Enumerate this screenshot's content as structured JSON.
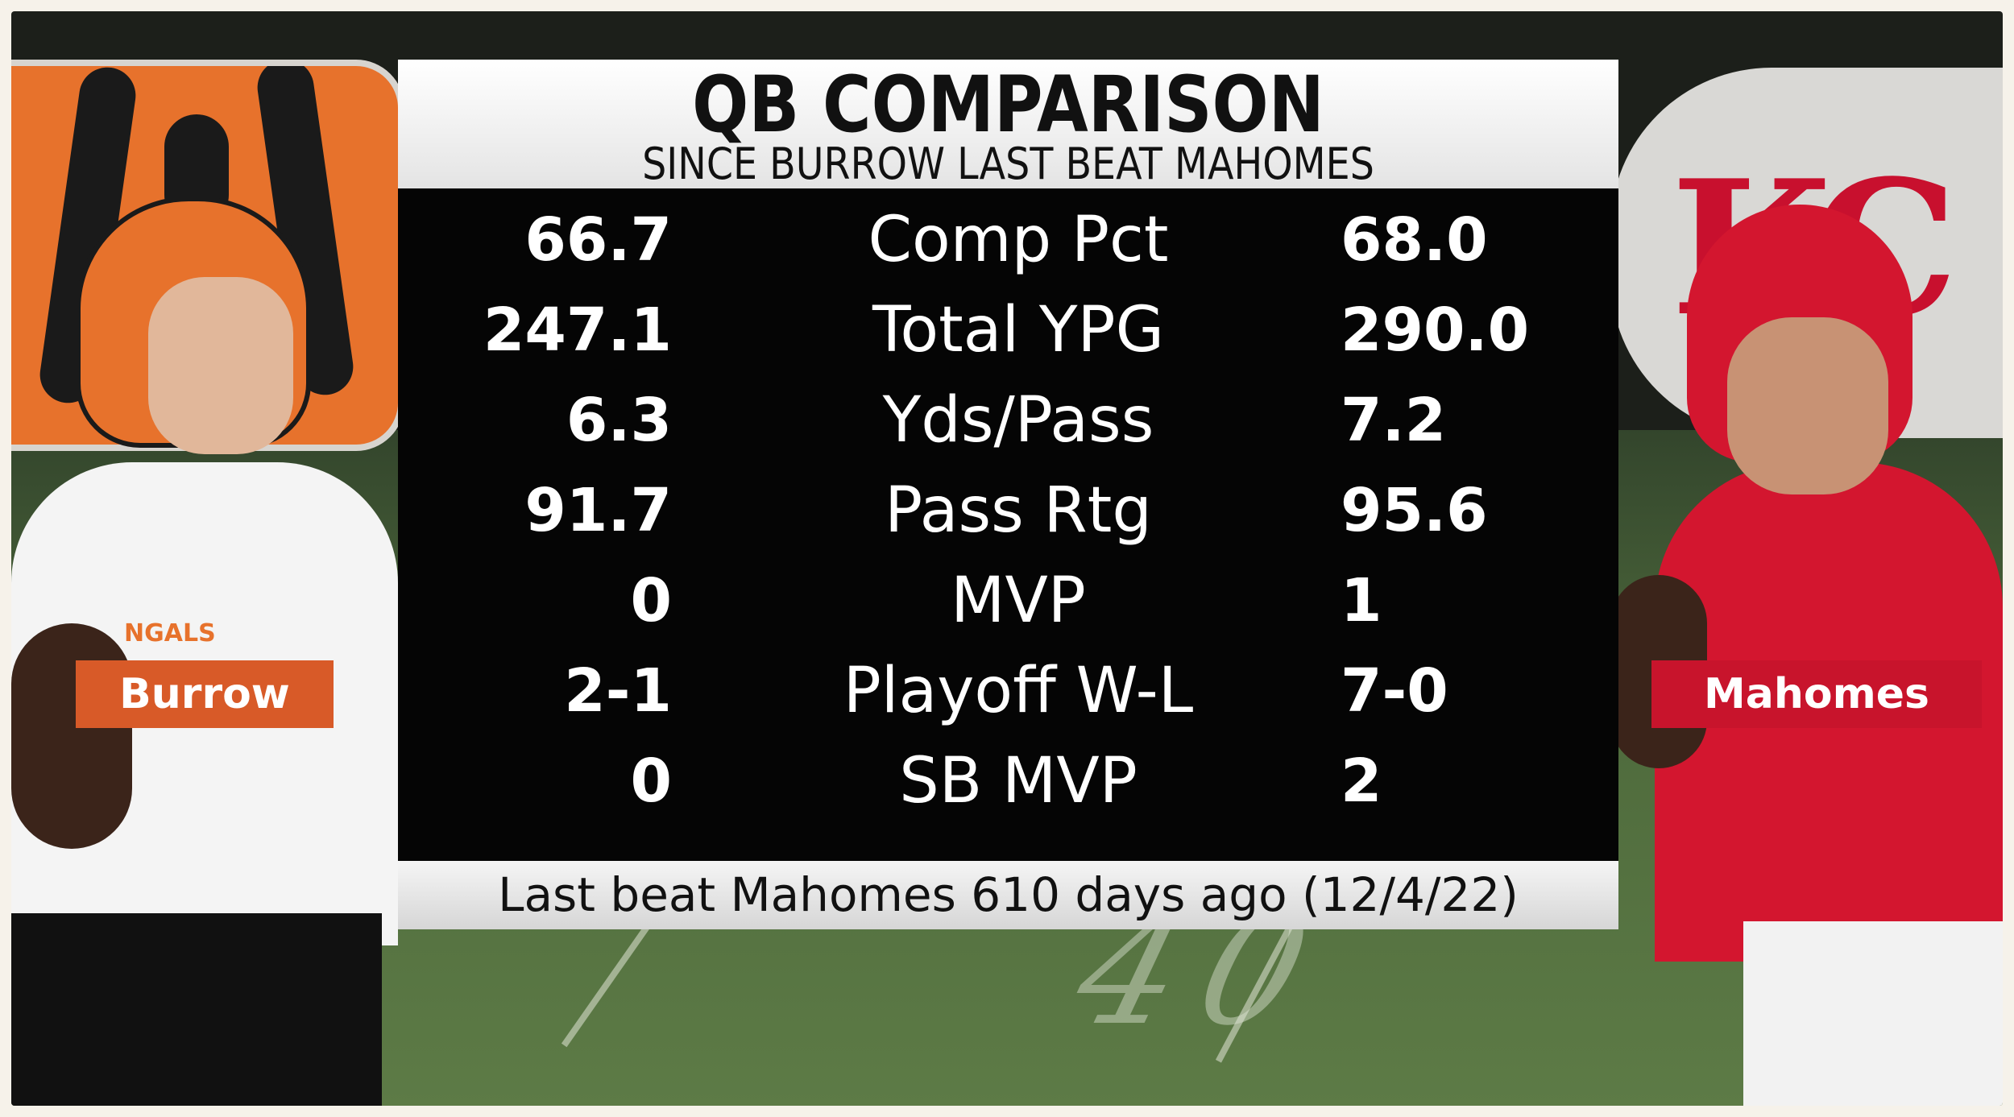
{
  "graphic": {
    "title": "QB COMPARISON",
    "subtitle": "SINCE BURROW LAST BEAT MAHOMES",
    "footer": "Last beat Mahomes 610 days ago (12/4/22)"
  },
  "players": {
    "left": {
      "name": "Burrow",
      "color": "#d85a28"
    },
    "right": {
      "name": "Mahomes",
      "color": "#c8142c"
    }
  },
  "stats": [
    {
      "label": "Comp Pct",
      "burrow": "66.7",
      "mahomes": "68.0"
    },
    {
      "label": "Total YPG",
      "burrow": "247.1",
      "mahomes": "290.0"
    },
    {
      "label": "Yds/Pass",
      "burrow": "6.3",
      "mahomes": "7.2"
    },
    {
      "label": "Pass Rtg",
      "burrow": "91.7",
      "mahomes": "95.6"
    },
    {
      "label": "MVP",
      "burrow": "0",
      "mahomes": "1"
    },
    {
      "label": "Playoff W-L",
      "burrow": "2-1",
      "mahomes": "7-0"
    },
    {
      "label": "SB MVP",
      "burrow": "0",
      "mahomes": "2"
    }
  ],
  "background": {
    "chiefs_logo": "KC",
    "yard_marker": "40",
    "bengals_jersey_text": "NGALS"
  }
}
